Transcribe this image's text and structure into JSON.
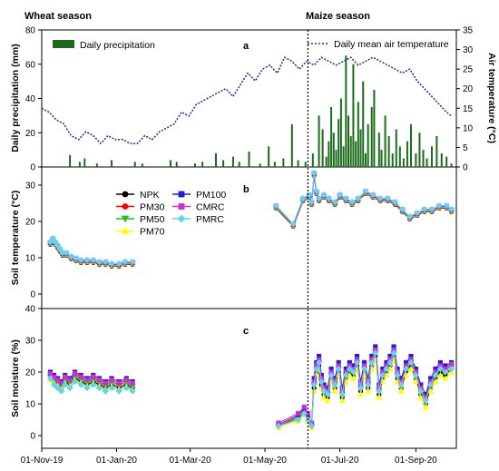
{
  "seasons": {
    "wheat": "Wheat season",
    "maize": "Maize season"
  },
  "x_axis": {
    "ticks": [
      "01-Nov-19",
      "01-Jan-20",
      "01-Mar-20",
      "01-May-20",
      "01-Jul-20",
      "01-Sep-20"
    ]
  },
  "chart_data": [
    {
      "panel": "a",
      "type": "bar",
      "ylabel": "Daily precipitation (mm)",
      "ylim": [
        0,
        80
      ],
      "yticks": [
        0,
        20,
        40,
        60,
        80
      ],
      "legend": {
        "label": "Daily precipitation",
        "placement": "top-left",
        "color": "#1a6b1a"
      },
      "series": [
        {
          "name": "Daily precipitation",
          "x": [
            "2019-11-24",
            "2019-12-02",
            "2019-12-06",
            "2019-12-16",
            "2019-12-28",
            "2020-01-16",
            "2020-01-22",
            "2020-02-14",
            "2020-02-19",
            "2020-03-05",
            "2020-03-11",
            "2020-03-22",
            "2020-03-28",
            "2020-04-05",
            "2020-04-10",
            "2020-04-18",
            "2020-04-27",
            "2020-05-04",
            "2020-05-09",
            "2020-05-16",
            "2020-05-23",
            "2020-05-28",
            "2020-06-03",
            "2020-06-09",
            "2020-06-14",
            "2020-06-17",
            "2020-06-20",
            "2020-06-22",
            "2020-06-24",
            "2020-06-26",
            "2020-06-28",
            "2020-06-30",
            "2020-07-02",
            "2020-07-04",
            "2020-07-06",
            "2020-07-08",
            "2020-07-10",
            "2020-07-12",
            "2020-07-14",
            "2020-07-16",
            "2020-07-18",
            "2020-07-20",
            "2020-07-22",
            "2020-07-24",
            "2020-07-27",
            "2020-07-29",
            "2020-08-02",
            "2020-08-04",
            "2020-08-07",
            "2020-08-10",
            "2020-08-13",
            "2020-08-16",
            "2020-08-19",
            "2020-08-22",
            "2020-08-25",
            "2020-08-28",
            "2020-09-01",
            "2020-09-04",
            "2020-09-07",
            "2020-09-10",
            "2020-09-14",
            "2020-09-18",
            "2020-09-22",
            "2020-09-26",
            "2020-09-30"
          ],
          "values": [
            7,
            3,
            5,
            2,
            4,
            3,
            2,
            4,
            3,
            2,
            3,
            8,
            4,
            6,
            3,
            9,
            2,
            12,
            3,
            5,
            25,
            4,
            3,
            8,
            30,
            22,
            6,
            15,
            35,
            20,
            10,
            28,
            40,
            12,
            65,
            30,
            18,
            60,
            15,
            38,
            22,
            50,
            8,
            25,
            35,
            45,
            20,
            10,
            30,
            18,
            8,
            22,
            12,
            5,
            15,
            25,
            8,
            20,
            10,
            5,
            12,
            18,
            8,
            6,
            2
          ]
        }
      ]
    },
    {
      "panel": "a",
      "type": "line",
      "ylabel": "Air temperature (°C)",
      "axis": "right",
      "ylim": [
        0,
        35
      ],
      "yticks": [
        0,
        5,
        10,
        15,
        20,
        25,
        30,
        35
      ],
      "legend": {
        "label": "Daily mean air temperature",
        "placement": "top-right",
        "color": "#1f2e8c"
      },
      "series": [
        {
          "name": "Daily mean air temperature",
          "x": [
            "2019-11-01",
            "2019-11-07",
            "2019-11-13",
            "2019-11-19",
            "2019-11-25",
            "2019-12-01",
            "2019-12-07",
            "2019-12-13",
            "2019-12-19",
            "2019-12-25",
            "2019-12-31",
            "2020-01-06",
            "2020-01-12",
            "2020-01-18",
            "2020-01-24",
            "2020-01-30",
            "2020-02-05",
            "2020-02-11",
            "2020-02-17",
            "2020-02-23",
            "2020-02-29",
            "2020-03-06",
            "2020-03-12",
            "2020-03-18",
            "2020-03-24",
            "2020-03-30",
            "2020-04-05",
            "2020-04-11",
            "2020-04-17",
            "2020-04-23",
            "2020-04-29",
            "2020-05-05",
            "2020-05-11",
            "2020-05-17",
            "2020-05-23",
            "2020-05-29",
            "2020-06-04",
            "2020-06-10",
            "2020-06-16",
            "2020-06-22",
            "2020-06-28",
            "2020-07-04",
            "2020-07-10",
            "2020-07-16",
            "2020-07-22",
            "2020-07-28",
            "2020-08-03",
            "2020-08-09",
            "2020-08-15",
            "2020-08-21",
            "2020-08-27",
            "2020-09-02",
            "2020-09-08",
            "2020-09-14",
            "2020-09-20",
            "2020-09-26",
            "2020-09-30"
          ],
          "values": [
            15,
            14,
            12,
            11,
            8,
            7,
            9,
            8,
            6,
            8,
            7,
            7,
            6,
            6,
            8,
            7,
            9,
            10,
            11,
            14,
            13,
            16,
            17,
            18,
            19,
            20,
            18,
            21,
            24,
            22,
            25,
            26,
            24,
            28,
            27,
            25,
            27,
            26,
            28,
            27,
            26,
            27,
            28,
            26,
            27,
            28,
            27,
            26,
            25,
            24,
            25,
            22,
            20,
            18,
            16,
            14,
            13
          ]
        }
      ]
    },
    {
      "panel": "b",
      "type": "line",
      "ylabel": "Soil temperature (°C)",
      "ylim": [
        -4,
        35
      ],
      "yticks": [
        0,
        10,
        20,
        30
      ],
      "legend": {
        "placement": "upper-left, two columns"
      },
      "series": [
        {
          "name": "NPK",
          "color": "#000000",
          "marker": "circle"
        },
        {
          "name": "PM30",
          "color": "#ff0000",
          "marker": "circle"
        },
        {
          "name": "PM50",
          "color": "#22c322",
          "marker": "triangle-down"
        },
        {
          "name": "PM70",
          "color": "#ffff00",
          "marker": "triangle-up"
        },
        {
          "name": "PM100",
          "color": "#1f1fd8",
          "marker": "square"
        },
        {
          "name": "CMRC",
          "color": "#d22bd2",
          "marker": "square"
        },
        {
          "name": "PMRC",
          "color": "#61d4ee",
          "marker": "diamond"
        }
      ],
      "x": [
        "2019-11-08",
        "2019-11-10",
        "2019-11-12",
        "2019-11-14",
        "2019-11-16",
        "2019-11-18",
        "2019-11-21",
        "2019-11-25",
        "2019-11-29",
        "2019-12-03",
        "2019-12-08",
        "2019-12-13",
        "2019-12-18",
        "2019-12-23",
        "2019-12-28",
        "2020-01-03",
        "2020-01-08",
        "2020-01-14",
        "2020-05-10",
        "2020-05-24",
        "2020-06-01",
        "2020-06-06",
        "2020-06-08",
        "2020-06-10",
        "2020-06-12",
        "2020-06-14",
        "2020-06-18",
        "2020-06-22",
        "2020-06-27",
        "2020-07-01",
        "2020-07-06",
        "2020-07-11",
        "2020-07-16",
        "2020-07-22",
        "2020-07-28",
        "2020-08-03",
        "2020-08-09",
        "2020-08-15",
        "2020-08-21",
        "2020-08-27",
        "2020-09-02",
        "2020-09-08",
        "2020-09-14",
        "2020-09-20",
        "2020-09-26",
        "2020-09-30"
      ],
      "values": [
        14,
        15,
        14,
        13,
        12,
        11,
        11,
        10,
        9.5,
        9,
        9,
        9,
        8.5,
        8.5,
        8,
        8,
        8.5,
        8.5,
        24,
        19,
        26,
        27,
        25,
        33,
        28,
        26,
        27,
        26,
        25,
        27,
        26,
        25,
        26,
        28,
        27,
        26,
        26,
        25,
        23,
        21,
        22,
        23,
        23,
        24,
        24,
        23
      ]
    },
    {
      "panel": "c",
      "type": "line",
      "ylabel": "Soil moisture (%)",
      "ylim": [
        -4,
        40
      ],
      "yticks": [
        0,
        10,
        20,
        30,
        40
      ],
      "x": [
        "2019-11-08",
        "2019-11-11",
        "2019-11-14",
        "2019-11-17",
        "2019-11-20",
        "2019-11-24",
        "2019-11-28",
        "2019-12-03",
        "2019-12-08",
        "2019-12-13",
        "2019-12-18",
        "2019-12-23",
        "2019-12-28",
        "2020-01-03",
        "2020-01-09",
        "2020-01-14",
        "2020-05-12",
        "2020-05-28",
        "2020-06-02",
        "2020-06-05",
        "2020-06-08",
        "2020-06-10",
        "2020-06-12",
        "2020-06-14",
        "2020-06-16",
        "2020-06-18",
        "2020-06-21",
        "2020-06-24",
        "2020-06-27",
        "2020-06-30",
        "2020-07-03",
        "2020-07-06",
        "2020-07-09",
        "2020-07-12",
        "2020-07-15",
        "2020-07-18",
        "2020-07-21",
        "2020-07-24",
        "2020-07-27",
        "2020-07-30",
        "2020-08-02",
        "2020-08-05",
        "2020-08-08",
        "2020-08-11",
        "2020-08-14",
        "2020-08-17",
        "2020-08-20",
        "2020-08-24",
        "2020-08-28",
        "2020-09-01",
        "2020-09-05",
        "2020-09-09",
        "2020-09-13",
        "2020-09-17",
        "2020-09-21",
        "2020-09-25",
        "2020-09-30"
      ],
      "series": [
        {
          "name": "NPK",
          "values": [
            18,
            17,
            16,
            15,
            17,
            16,
            18,
            17,
            16,
            17,
            16,
            15,
            16,
            15,
            16,
            15,
            3,
            5,
            7,
            5,
            3,
            15,
            20,
            22,
            16,
            13,
            12,
            18,
            15,
            20,
            12,
            18,
            20,
            19,
            22,
            14,
            20,
            15,
            22,
            25,
            13,
            18,
            20,
            22,
            25,
            18,
            15,
            20,
            22,
            18,
            13,
            10,
            15,
            18,
            20,
            19,
            21
          ]
        },
        {
          "name": "PM30",
          "values": [
            19,
            18,
            17,
            16,
            18,
            17,
            19,
            18,
            17,
            18,
            17,
            16,
            17,
            16,
            17,
            16,
            3,
            6,
            8,
            6,
            3,
            17,
            22,
            24,
            18,
            15,
            14,
            20,
            17,
            22,
            14,
            20,
            22,
            21,
            24,
            16,
            22,
            17,
            24,
            27,
            15,
            20,
            22,
            24,
            27,
            20,
            17,
            22,
            24,
            20,
            15,
            12,
            17,
            20,
            22,
            21,
            22
          ]
        },
        {
          "name": "PM50",
          "values": [
            18.5,
            17.5,
            16.5,
            15.5,
            17.5,
            16.5,
            18.5,
            17.5,
            16.5,
            17.5,
            16.5,
            15.5,
            16.5,
            15.5,
            16.5,
            15.5,
            3,
            5.5,
            7.5,
            5.5,
            3,
            16,
            21,
            23,
            17,
            14,
            13,
            19,
            16,
            21,
            13,
            19,
            21,
            20,
            23,
            15,
            21,
            16,
            23,
            26,
            14,
            19,
            21,
            23,
            26,
            19,
            16,
            21,
            23,
            19,
            14,
            11,
            16,
            19,
            21,
            20,
            21.5
          ]
        },
        {
          "name": "PM70",
          "values": [
            17.5,
            16.5,
            15.5,
            14.5,
            16.5,
            15.5,
            17.5,
            16.5,
            15.5,
            16.5,
            15.5,
            14.5,
            15.5,
            14.5,
            15.5,
            14.5,
            2.5,
            4.5,
            6.5,
            4.5,
            2.5,
            14,
            19,
            21,
            15,
            12,
            11,
            17,
            14,
            19,
            11,
            17,
            19,
            18,
            21,
            13,
            19,
            14,
            21,
            24,
            12,
            17,
            19,
            21,
            24,
            17,
            14,
            19,
            21,
            17,
            12,
            9,
            14,
            17,
            19,
            18,
            20
          ]
        },
        {
          "name": "PM100",
          "values": [
            20,
            19,
            18,
            17,
            19,
            18,
            20,
            19,
            18,
            19,
            18,
            17,
            18,
            17,
            18,
            17,
            3.5,
            6.5,
            8.5,
            6.5,
            3.5,
            18,
            23,
            25,
            19,
            16,
            15,
            21,
            18,
            23,
            15,
            21,
            23,
            22,
            25,
            17,
            23,
            18,
            25,
            28,
            16,
            21,
            23,
            25,
            28,
            21,
            18,
            23,
            25,
            21,
            16,
            13,
            18,
            21,
            23,
            22,
            23
          ]
        },
        {
          "name": "CMRC",
          "values": [
            19.5,
            18.5,
            17.5,
            16.5,
            18.5,
            17.5,
            19.5,
            18.5,
            17.5,
            18.5,
            17.5,
            16.5,
            17.5,
            16.5,
            17.5,
            16.5,
            4,
            7,
            9,
            7,
            4,
            17,
            22,
            24,
            18,
            15,
            14,
            20,
            17,
            22,
            14,
            20,
            22,
            21,
            24,
            16,
            22,
            17,
            24,
            27,
            15,
            20,
            22,
            24,
            27,
            20,
            17,
            22,
            24,
            20,
            15,
            12,
            17,
            20,
            22,
            21,
            22.5
          ]
        },
        {
          "name": "PMRC",
          "values": [
            18,
            16,
            15,
            14,
            16,
            15,
            17,
            16,
            15,
            16,
            15,
            14,
            15,
            14,
            15,
            14,
            3,
            5,
            7,
            5,
            3,
            16,
            21,
            23,
            17,
            14,
            13,
            19,
            16,
            21,
            13,
            19,
            21,
            20,
            23,
            15,
            21,
            16,
            23,
            26,
            14,
            19,
            21,
            23,
            26,
            19,
            16,
            21,
            23,
            19,
            14,
            11,
            16,
            19,
            21,
            20,
            21
          ]
        }
      ]
    }
  ],
  "panel_labels": {
    "a": "a",
    "b": "b",
    "c": "c"
  },
  "divider_date": "2020-06-05"
}
